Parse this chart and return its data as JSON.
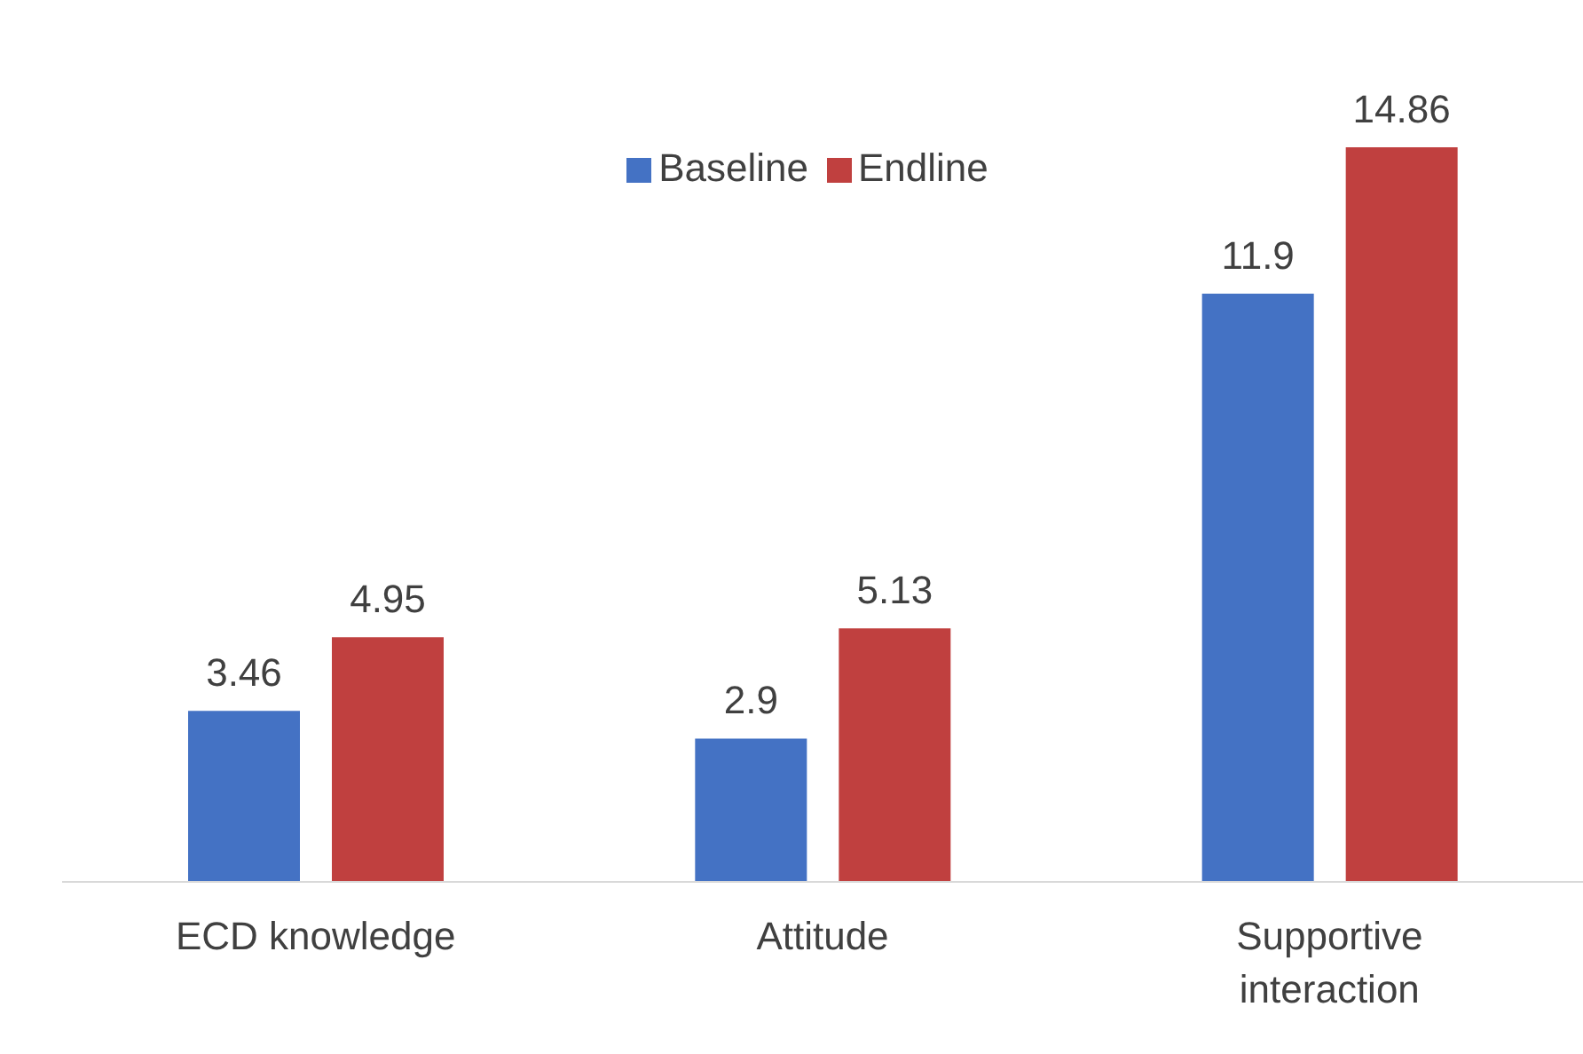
{
  "chart_data": {
    "type": "bar",
    "categories": [
      "ECD knowledge",
      "Attitude",
      "Supportive interaction"
    ],
    "series": [
      {
        "name": "Baseline",
        "color": "#4472c4",
        "values": [
          3.46,
          2.9,
          11.9
        ]
      },
      {
        "name": "Endline",
        "color": "#c0403f",
        "values": [
          4.95,
          5.13,
          14.86
        ]
      }
    ],
    "data_labels": true,
    "legend": "top",
    "grid": false
  }
}
